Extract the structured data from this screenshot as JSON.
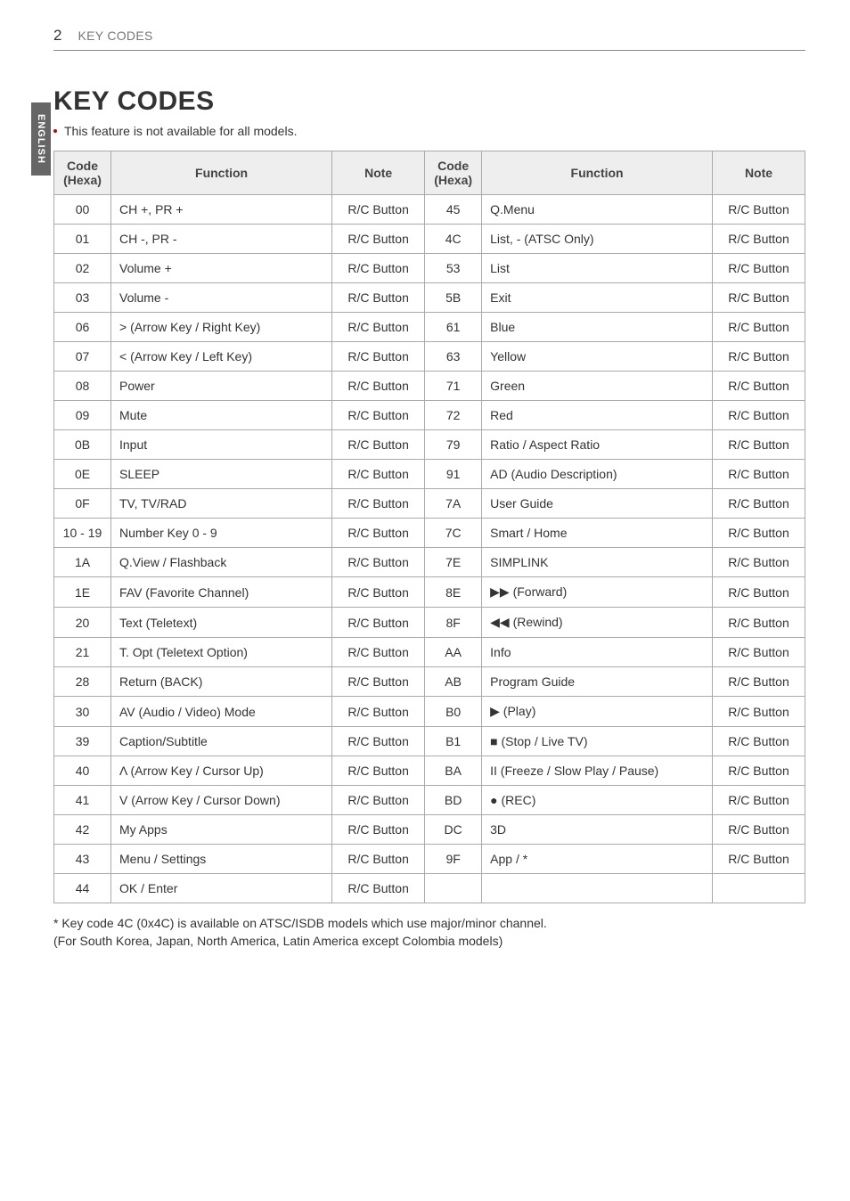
{
  "page": {
    "number": "2",
    "header_label": "KEY CODES"
  },
  "sidebar": {
    "language": "ENGLISH"
  },
  "title": "KEY CODES",
  "intro_bullet": "This feature is not available for all models.",
  "table": {
    "headers": {
      "code": "Code (Hexa)",
      "function": "Function",
      "note": "Note"
    },
    "left_rows": [
      {
        "code": "00",
        "func": "CH +, PR +",
        "note": "R/C Button"
      },
      {
        "code": "01",
        "func": "CH -, PR -",
        "note": "R/C Button"
      },
      {
        "code": "02",
        "func": "Volume +",
        "note": "R/C Button"
      },
      {
        "code": "03",
        "func": "Volume -",
        "note": "R/C Button"
      },
      {
        "code": "06",
        "func": "> (Arrow Key / Right Key)",
        "note": "R/C Button"
      },
      {
        "code": "07",
        "func": "< (Arrow Key / Left Key)",
        "note": "R/C Button"
      },
      {
        "code": "08",
        "func": "Power",
        "note": "R/C Button"
      },
      {
        "code": "09",
        "func": "Mute",
        "note": "R/C Button"
      },
      {
        "code": "0B",
        "func": "Input",
        "note": "R/C Button"
      },
      {
        "code": "0E",
        "func": "SLEEP",
        "note": "R/C Button"
      },
      {
        "code": "0F",
        "func": "TV, TV/RAD",
        "note": "R/C Button"
      },
      {
        "code": "10 - 19",
        "func": "Number Key 0 - 9",
        "note": "R/C Button"
      },
      {
        "code": "1A",
        "func": "Q.View / Flashback",
        "note": "R/C Button"
      },
      {
        "code": "1E",
        "func": "FAV (Favorite Channel)",
        "note": "R/C Button"
      },
      {
        "code": "20",
        "func": "Text (Teletext)",
        "note": "R/C Button"
      },
      {
        "code": "21",
        "func": "T. Opt (Teletext Option)",
        "note": "R/C Button"
      },
      {
        "code": "28",
        "func": "Return (BACK)",
        "note": "R/C Button"
      },
      {
        "code": "30",
        "func": "AV (Audio / Video) Mode",
        "note": "R/C Button"
      },
      {
        "code": "39",
        "func": "Caption/Subtitle",
        "note": "R/C Button"
      },
      {
        "code": "40",
        "func": "Λ (Arrow Key / Cursor Up)",
        "note": "R/C Button"
      },
      {
        "code": "41",
        "func": "V (Arrow Key / Cursor Down)",
        "note": "R/C Button"
      },
      {
        "code": "42",
        "func": "My Apps",
        "note": "R/C Button"
      },
      {
        "code": "43",
        "func": "Menu / Settings",
        "note": "R/C Button"
      },
      {
        "code": "44",
        "func": "OK / Enter",
        "note": "R/C Button"
      }
    ],
    "right_rows": [
      {
        "code": "45",
        "func": "Q.Menu",
        "note": "R/C Button"
      },
      {
        "code": "4C",
        "func": "List, - (ATSC Only)",
        "note": "R/C Button"
      },
      {
        "code": "53",
        "func": "List",
        "note": "R/C Button"
      },
      {
        "code": "5B",
        "func": "Exit",
        "note": "R/C Button"
      },
      {
        "code": "61",
        "func": "Blue",
        "note": "R/C Button"
      },
      {
        "code": "63",
        "func": "Yellow",
        "note": "R/C Button"
      },
      {
        "code": "71",
        "func": "Green",
        "note": "R/C Button"
      },
      {
        "code": "72",
        "func": "Red",
        "note": "R/C Button"
      },
      {
        "code": "79",
        "func": "Ratio / Aspect Ratio",
        "note": "R/C Button"
      },
      {
        "code": "91",
        "func": "AD (Audio Description)",
        "note": "R/C Button"
      },
      {
        "code": "7A",
        "func": "User Guide",
        "note": "R/C Button"
      },
      {
        "code": "7C",
        "func": "Smart / Home",
        "note": "R/C Button"
      },
      {
        "code": "7E",
        "func": "SIMPLINK",
        "note": "R/C Button"
      },
      {
        "code": "8E",
        "func": "▶▶ (Forward)",
        "note": "R/C Button"
      },
      {
        "code": "8F",
        "func": "◀◀ (Rewind)",
        "note": "R/C Button"
      },
      {
        "code": "AA",
        "func": "Info",
        "note": "R/C Button"
      },
      {
        "code": "AB",
        "func": "Program Guide",
        "note": "R/C Button"
      },
      {
        "code": "B0",
        "func": "▶ (Play)",
        "note": "R/C Button"
      },
      {
        "code": "B1",
        "func": "■ (Stop / Live TV)",
        "note": "R/C Button"
      },
      {
        "code": "BA",
        "func": "II (Freeze / Slow Play / Pause)",
        "note": "R/C Button"
      },
      {
        "code": "BD",
        "func": "● (REC)",
        "note": "R/C Button"
      },
      {
        "code": "DC",
        "func": "3D",
        "note": "R/C Button"
      },
      {
        "code": "9F",
        "func": "App / *",
        "note": "R/C Button"
      },
      {
        "code": "",
        "func": "",
        "note": ""
      }
    ]
  },
  "footnote_lines": [
    "*  Key code 4C (0x4C) is available on ATSC/ISDB models which use major/minor channel.",
    "   (For South Korea, Japan, North America, Latin America except Colombia models)"
  ]
}
